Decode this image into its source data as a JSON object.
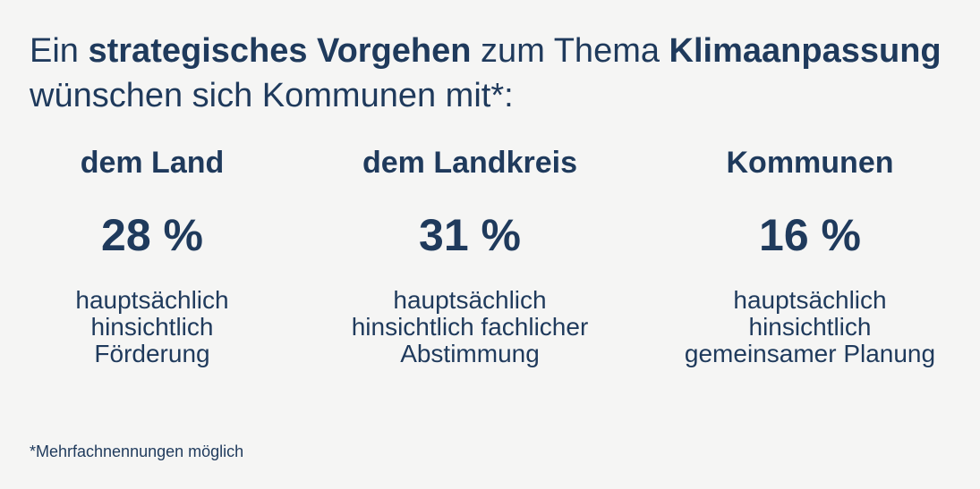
{
  "headline": {
    "part1": "Ein ",
    "bold1": "strategisches Vorgehen",
    "part2": " zum Thema ",
    "bold2": "Klimaanpassung",
    "part3": " wünschen sich Kommunen mit*:"
  },
  "columns": [
    {
      "title": "dem Land",
      "percent": "28 %",
      "desc_lines": [
        "hauptsächlich",
        "hinsichtlich",
        "Förderung"
      ]
    },
    {
      "title": "dem Landkreis",
      "percent": "31 %",
      "desc_lines": [
        "hauptsächlich",
        "hinsichtlich fachlicher",
        "Abstimmung"
      ]
    },
    {
      "title": "Kommunen",
      "percent": "16 %",
      "desc_lines": [
        "hauptsächlich",
        "hinsichtlich",
        "gemeinsamer Planung"
      ]
    }
  ],
  "footnote": "*Mehrfachnennungen möglich",
  "colors": {
    "background": "#f5f5f4",
    "text": "#1f3a5c"
  }
}
